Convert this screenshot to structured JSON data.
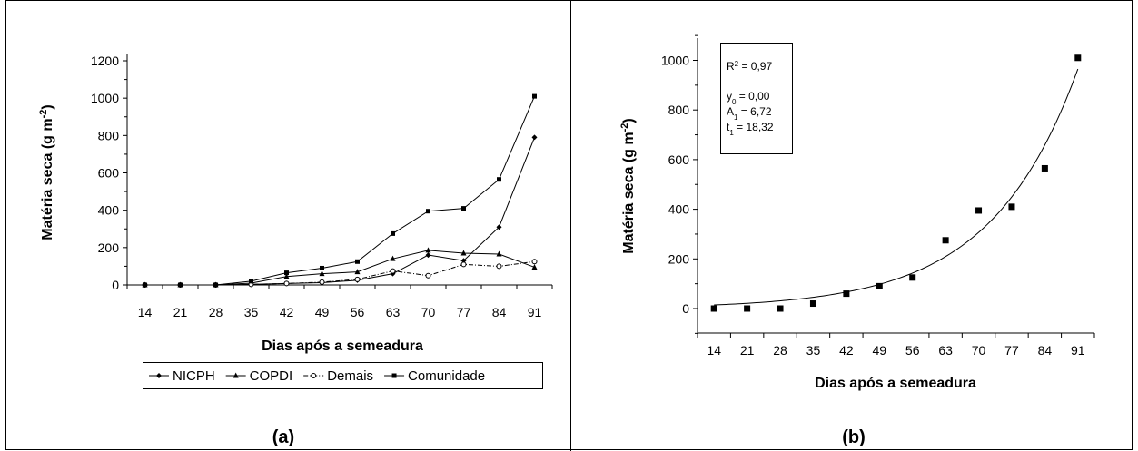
{
  "chart_data": [
    {
      "type": "line",
      "panel_label": "(a)",
      "xlabel": "Dias após a semeadura",
      "ylabel_main": "Matéria seca (g m",
      "ylabel_exp": "-2",
      "ylabel_close": ")",
      "x": [
        14,
        21,
        28,
        35,
        42,
        49,
        56,
        63,
        70,
        77,
        84,
        91
      ],
      "yticks": [
        0,
        200,
        400,
        600,
        800,
        1000,
        1200
      ],
      "ylim": [
        0,
        1200
      ],
      "legend_position": "bottom",
      "series": [
        {
          "name": "NICPH",
          "marker": "diamond",
          "dash": "solid",
          "values": [
            0,
            0,
            0,
            3,
            8,
            12,
            25,
            60,
            160,
            130,
            310,
            790
          ]
        },
        {
          "name": "COPDI",
          "marker": "triangle",
          "dash": "solid",
          "values": [
            0,
            0,
            0,
            10,
            45,
            60,
            70,
            140,
            185,
            170,
            165,
            95
          ]
        },
        {
          "name": "Demais",
          "marker": "open-circle",
          "dash": "dashdot",
          "values": [
            0,
            0,
            0,
            3,
            8,
            15,
            30,
            75,
            50,
            110,
            100,
            125
          ]
        },
        {
          "name": "Comunidade",
          "marker": "square",
          "dash": "solid",
          "values": [
            0,
            0,
            0,
            20,
            65,
            90,
            125,
            275,
            395,
            410,
            565,
            1010
          ]
        }
      ]
    },
    {
      "type": "scatter",
      "panel_label": "(b)",
      "xlabel": "Dias após a semeadura",
      "ylabel_main": "Matéria seca (g m",
      "ylabel_exp": "-2",
      "ylabel_close": ")",
      "x": [
        14,
        21,
        28,
        35,
        42,
        49,
        56,
        63,
        70,
        77,
        84,
        91
      ],
      "yticks": [
        0,
        200,
        400,
        600,
        800,
        1000
      ],
      "ylim": [
        -100,
        1100
      ],
      "series": [
        {
          "name": "",
          "marker": "square",
          "values": [
            0,
            0,
            0,
            20,
            60,
            90,
            125,
            275,
            395,
            410,
            565,
            1010
          ]
        }
      ],
      "fit": {
        "model": "exponential",
        "y0": 0.0,
        "A1": 6.72,
        "t1": 18.32
      },
      "fit_box": {
        "r2_label": "R",
        "r2_sup": "2",
        "r2_value": " = 0,97",
        "y0_label": "y",
        "y0_sub": "0",
        "y0_value": " = 0,00",
        "a1_label": "A",
        "a1_sub": "1",
        "a1_value": " = 6,72",
        "t1_label": "t",
        "t1_sub": "1",
        "t1_value": " = 18,32"
      }
    }
  ]
}
